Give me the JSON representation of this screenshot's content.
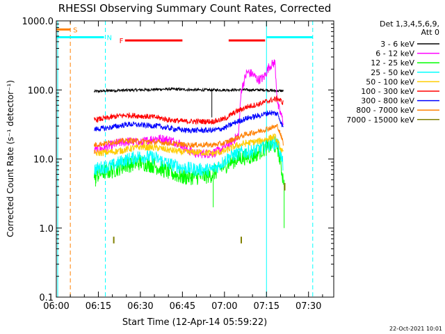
{
  "chart_data": {
    "type": "line",
    "title": "RHESSI Observing Summary Count Rates, Corrected",
    "xlabel": "Start Time (12-Apr-14 05:59:22)",
    "ylabel": "Corrected Count Rate (s⁻¹ detector⁻¹)",
    "y_scale": "log",
    "ylim": [
      0.1,
      1000
    ],
    "xlim_minutes": [
      0,
      99
    ],
    "x_ticks": [
      {
        "label": "06:00",
        "min": 0
      },
      {
        "label": "06:15",
        "min": 15
      },
      {
        "label": "06:30",
        "min": 30
      },
      {
        "label": "06:45",
        "min": 45
      },
      {
        "label": "07:00",
        "min": 60
      },
      {
        "label": "07:15",
        "min": 75
      },
      {
        "label": "07:30",
        "min": 90
      }
    ],
    "y_ticks": [
      {
        "label": "0.1",
        "value": 0.1
      },
      {
        "label": "1.0",
        "value": 1
      },
      {
        "label": "10.0",
        "value": 10
      },
      {
        "label": "100.0",
        "value": 100
      },
      {
        "label": "1000.0",
        "value": 1000
      }
    ],
    "legend": {
      "header1": "Det 1,3,4,5,6,9,",
      "header2": "Att 0",
      "placement": "right"
    },
    "series": [
      {
        "name": "3 - 6 keV",
        "color": "#000000",
        "start": 13.5,
        "end": 81,
        "noise": 0.02,
        "values": [
          [
            13.5,
            95
          ],
          [
            20,
            98
          ],
          [
            30,
            100
          ],
          [
            40,
            103
          ],
          [
            50,
            100
          ],
          [
            55,
            100
          ],
          [
            62,
            100
          ],
          [
            66,
            100
          ],
          [
            70,
            100
          ],
          [
            75,
            100
          ],
          [
            78,
            97
          ],
          [
            81,
            97
          ]
        ],
        "spikes": [
          [
            55.5,
            40
          ]
        ]
      },
      {
        "name": "6 - 12 keV",
        "color": "#ff00ff",
        "start": 13.5,
        "end": 81,
        "noise": 0.07,
        "values": [
          [
            13.5,
            13
          ],
          [
            18,
            15
          ],
          [
            22,
            17
          ],
          [
            26,
            18
          ],
          [
            30,
            17
          ],
          [
            35,
            20
          ],
          [
            40,
            19
          ],
          [
            44,
            17
          ],
          [
            46,
            14
          ],
          [
            50,
            12
          ],
          [
            55,
            12
          ],
          [
            58,
            13
          ],
          [
            62,
            17
          ],
          [
            65,
            22
          ],
          [
            66,
            100
          ],
          [
            68,
            180
          ],
          [
            70,
            170
          ],
          [
            72,
            140
          ],
          [
            74,
            150
          ],
          [
            76,
            220
          ],
          [
            78,
            250
          ],
          [
            79,
            60
          ],
          [
            81,
            35
          ]
        ],
        "spikes": []
      },
      {
        "name": "12 - 25 keV",
        "color": "#00ff00",
        "start": 13.5,
        "end": 81,
        "noise": 0.12,
        "values": [
          [
            13.5,
            5.5
          ],
          [
            16,
            6.3
          ],
          [
            20,
            6.8
          ],
          [
            24,
            8
          ],
          [
            30,
            9
          ],
          [
            35,
            8
          ],
          [
            40,
            6.5
          ],
          [
            45,
            5.5
          ],
          [
            50,
            5.5
          ],
          [
            55,
            5.8
          ],
          [
            58,
            7
          ],
          [
            62,
            9
          ],
          [
            66,
            10.5
          ],
          [
            70,
            11
          ],
          [
            74,
            14
          ],
          [
            77,
            16
          ],
          [
            79,
            15
          ],
          [
            81,
            5
          ]
        ],
        "spikes": [
          [
            14,
            4
          ],
          [
            56,
            2
          ],
          [
            81.3,
            1
          ]
        ]
      },
      {
        "name": "25 - 50 keV",
        "color": "#00ffff",
        "start": 13.5,
        "end": 81,
        "noise": 0.1,
        "values": [
          [
            13.5,
            7
          ],
          [
            16,
            7.5
          ],
          [
            20,
            8
          ],
          [
            24,
            9.5
          ],
          [
            30,
            11
          ],
          [
            35,
            10.5
          ],
          [
            40,
            8.5
          ],
          [
            45,
            7.5
          ],
          [
            50,
            7
          ],
          [
            55,
            7
          ],
          [
            58,
            8
          ],
          [
            62,
            11
          ],
          [
            66,
            12.5
          ],
          [
            70,
            13
          ],
          [
            74,
            15
          ],
          [
            77,
            17
          ],
          [
            79,
            17
          ],
          [
            81,
            8
          ]
        ],
        "spikes": []
      },
      {
        "name": "50 - 100 keV",
        "color": "#ffcc00",
        "start": 13.5,
        "end": 81,
        "noise": 0.05,
        "values": [
          [
            13.5,
            12
          ],
          [
            18,
            12.5
          ],
          [
            22,
            13
          ],
          [
            26,
            14
          ],
          [
            30,
            15
          ],
          [
            36,
            14.5
          ],
          [
            40,
            13.5
          ],
          [
            46,
            12.5
          ],
          [
            52,
            12.5
          ],
          [
            56,
            12
          ],
          [
            60,
            13
          ],
          [
            64,
            15.5
          ],
          [
            68,
            17
          ],
          [
            72,
            18
          ],
          [
            76,
            20
          ],
          [
            78,
            21
          ],
          [
            81,
            12
          ]
        ],
        "spikes": []
      },
      {
        "name": "100 - 300 keV",
        "color": "#ff0000",
        "start": 13.5,
        "end": 81,
        "noise": 0.04,
        "values": [
          [
            13.5,
            37
          ],
          [
            18,
            39
          ],
          [
            22,
            42
          ],
          [
            26,
            43
          ],
          [
            30,
            42
          ],
          [
            36,
            40
          ],
          [
            40,
            37
          ],
          [
            46,
            35
          ],
          [
            52,
            35
          ],
          [
            56,
            35
          ],
          [
            60,
            38
          ],
          [
            64,
            48
          ],
          [
            68,
            57
          ],
          [
            72,
            62
          ],
          [
            76,
            70
          ],
          [
            79,
            75
          ],
          [
            81,
            65
          ]
        ],
        "spikes": []
      },
      {
        "name": "300 - 800 keV",
        "color": "#0000ff",
        "start": 13.5,
        "end": 81,
        "noise": 0.04,
        "values": [
          [
            13.5,
            27
          ],
          [
            18,
            28
          ],
          [
            22,
            30
          ],
          [
            26,
            32
          ],
          [
            30,
            31
          ],
          [
            36,
            30
          ],
          [
            40,
            28
          ],
          [
            46,
            26
          ],
          [
            52,
            26
          ],
          [
            56,
            26
          ],
          [
            60,
            28
          ],
          [
            64,
            34
          ],
          [
            68,
            39
          ],
          [
            72,
            42
          ],
          [
            76,
            47
          ],
          [
            79,
            45
          ],
          [
            81,
            28
          ]
        ],
        "spikes": []
      },
      {
        "name": "800 - 7000 keV",
        "color": "#ff8000",
        "start": 13.5,
        "end": 81,
        "noise": 0.04,
        "values": [
          [
            13.5,
            16
          ],
          [
            18,
            17
          ],
          [
            22,
            18
          ],
          [
            26,
            18.5
          ],
          [
            30,
            18
          ],
          [
            36,
            17.5
          ],
          [
            40,
            17
          ],
          [
            46,
            16
          ],
          [
            52,
            16
          ],
          [
            56,
            16
          ],
          [
            60,
            17
          ],
          [
            64,
            20
          ],
          [
            68,
            23
          ],
          [
            72,
            25
          ],
          [
            76,
            28
          ],
          [
            79,
            30
          ],
          [
            81,
            17
          ]
        ],
        "spikes": []
      },
      {
        "name": "7000 - 15000 keV",
        "color": "#808000",
        "start": null,
        "end": null,
        "noise": 0,
        "values": [],
        "spikes": [],
        "marks": [
          [
            20.5,
            0.6,
            0.75
          ],
          [
            66,
            0.6,
            0.75
          ],
          [
            81.5,
            3.5,
            4.5
          ]
        ]
      }
    ],
    "states": [
      {
        "label": "S",
        "color": "#ff8000",
        "y_value": 750,
        "start": 0,
        "end": 5,
        "label_at": 6
      },
      {
        "label": "N",
        "color": "#00ffff",
        "y_value": 580,
        "start": 0,
        "end": 17,
        "label_at": 18
      },
      {
        "label": "N",
        "color": "#00ffff",
        "y_value": 580,
        "start": 75,
        "end": 91.5,
        "label_at": null
      },
      {
        "label": "F",
        "color": "#ff0000",
        "y_value": 520,
        "start": 24.5,
        "end": 45,
        "label_at": 22.5
      },
      {
        "label": "F",
        "color": "#ff0000",
        "y_value": 520,
        "start": 61.5,
        "end": 74.5,
        "label_at": null
      }
    ],
    "vertical_lines": [
      {
        "x": 0.5,
        "color": "#00ffff",
        "style": "solid"
      },
      {
        "x": 5,
        "color": "#ff8000",
        "style": "dashed"
      },
      {
        "x": 17.5,
        "color": "#00ffff",
        "style": "dashed"
      },
      {
        "x": 75,
        "color": "#00ffff",
        "style": "solid"
      },
      {
        "x": 91.5,
        "color": "#00ffff",
        "style": "dashed"
      }
    ]
  },
  "footer": {
    "date": "22-Oct-2021 10:01"
  }
}
